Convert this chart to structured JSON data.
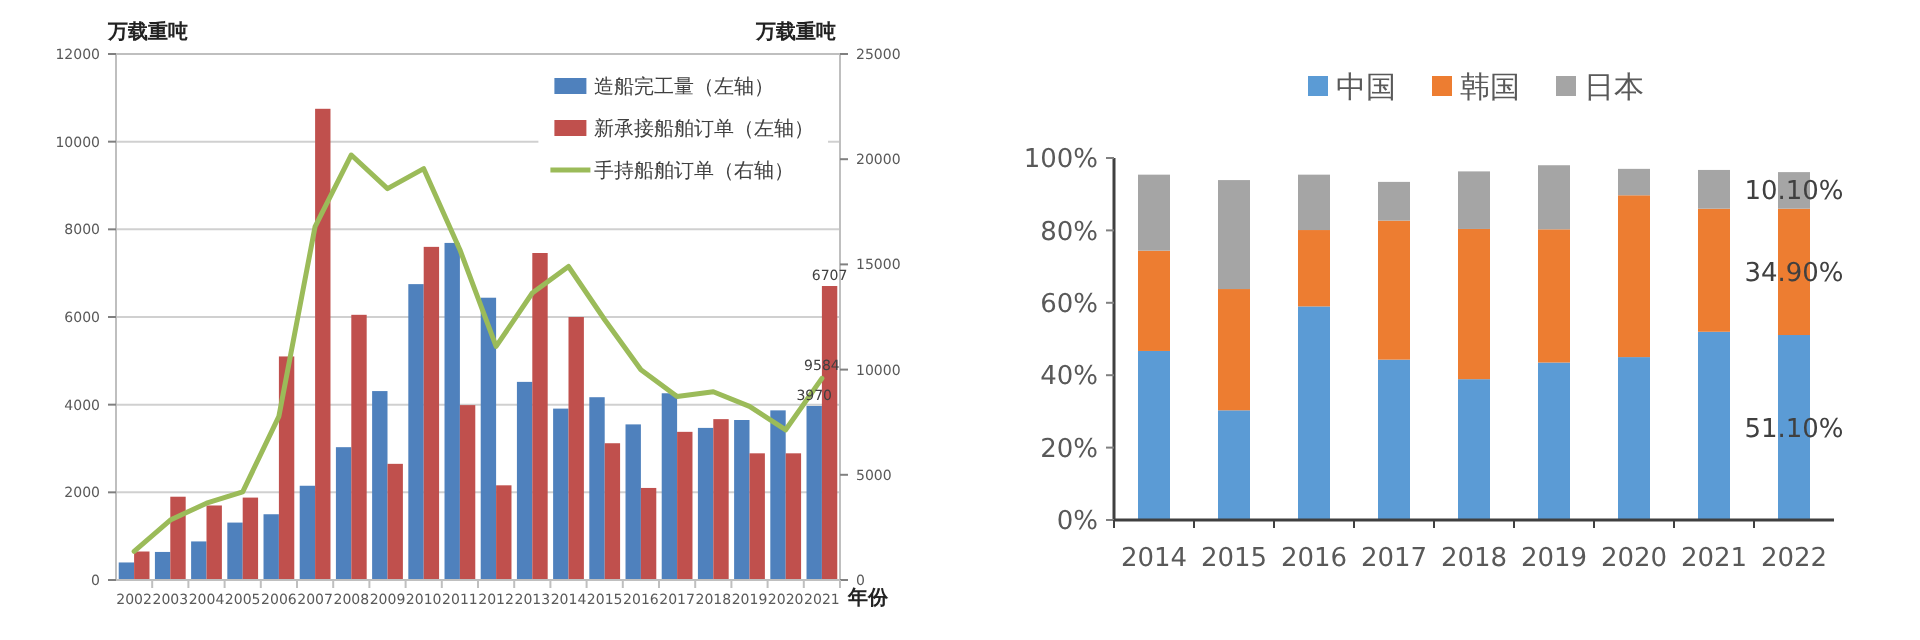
{
  "chart_data": [
    {
      "type": "bar",
      "categories": [
        "2002",
        "2003",
        "2004",
        "2005",
        "2006",
        "2007",
        "2008",
        "2009",
        "2010",
        "2011",
        "2012",
        "2013",
        "2014",
        "2015",
        "2016",
        "2017",
        "2018",
        "2019",
        "2020",
        "2021"
      ],
      "series": [
        {
          "name": "造船完工量（左轴）",
          "color": "#4f81bd",
          "values": [
            400,
            640,
            880,
            1310,
            1500,
            2150,
            3030,
            4310,
            6750,
            7690,
            6440,
            4520,
            3910,
            4170,
            3550,
            4260,
            3470,
            3650,
            3870,
            3970
          ],
          "value_labels": [
            null,
            null,
            null,
            null,
            null,
            null,
            null,
            null,
            null,
            null,
            null,
            null,
            null,
            null,
            null,
            null,
            null,
            null,
            null,
            "3970"
          ]
        },
        {
          "name": "新承接船舶订单（左轴）",
          "color": "#c0504d",
          "values": [
            650,
            1900,
            1700,
            1880,
            5100,
            10750,
            6050,
            2650,
            7600,
            3990,
            2160,
            7460,
            6000,
            3120,
            2100,
            3380,
            3670,
            2890,
            2890,
            6707
          ],
          "value_labels": [
            null,
            null,
            null,
            null,
            null,
            null,
            null,
            null,
            null,
            null,
            null,
            null,
            null,
            null,
            null,
            null,
            null,
            null,
            null,
            "6707"
          ]
        },
        {
          "name": "手持船舶订单（右轴）",
          "type": "line",
          "axis": "y2",
          "color": "#9bbb59",
          "values": [
            1360,
            2850,
            3650,
            4190,
            7780,
            16800,
            20200,
            18600,
            19550,
            15700,
            11100,
            13640,
            14900,
            12370,
            9990,
            8720,
            8950,
            8250,
            7140,
            9584
          ],
          "value_labels": [
            null,
            null,
            null,
            null,
            null,
            null,
            null,
            null,
            null,
            null,
            null,
            null,
            null,
            null,
            null,
            null,
            null,
            null,
            null,
            "9584"
          ]
        }
      ],
      "ylabel": "万载重吨",
      "y2label": "万载重吨",
      "xlabel": "年份",
      "ylim": [
        0,
        12000
      ],
      "yticks": [
        0,
        2000,
        4000,
        6000,
        8000,
        10000,
        12000
      ],
      "y2lim": [
        0,
        25000
      ],
      "y2ticks": [
        0,
        5000,
        10000,
        15000,
        20000,
        25000
      ],
      "grid": "y",
      "legend": "top right",
      "marker": "none"
    },
    {
      "type": "bar",
      "stacked": true,
      "categories": [
        "2014",
        "2015",
        "2016",
        "2017",
        "2018",
        "2019",
        "2020",
        "2021",
        "2022"
      ],
      "series": [
        {
          "name": "中国",
          "color": "#5b9bd5",
          "values": [
            46.7,
            30.3,
            59.0,
            44.3,
            38.9,
            43.5,
            45.0,
            52.0,
            51.1
          ],
          "value_labels": [
            null,
            null,
            null,
            null,
            null,
            null,
            null,
            null,
            "51.10%"
          ]
        },
        {
          "name": "韩国",
          "color": "#ed7d31",
          "values": [
            27.7,
            33.5,
            21.1,
            38.4,
            41.5,
            36.8,
            44.7,
            34.0,
            34.9
          ],
          "value_labels": [
            null,
            null,
            null,
            null,
            null,
            null,
            null,
            null,
            "34.90%"
          ]
        },
        {
          "name": "日本",
          "color": "#a5a5a5",
          "values": [
            21.0,
            30.1,
            15.3,
            10.7,
            15.9,
            17.7,
            7.3,
            10.7,
            10.1
          ],
          "value_labels": [
            null,
            null,
            null,
            null,
            null,
            null,
            null,
            null,
            "10.10%"
          ]
        }
      ],
      "ylim": [
        0,
        100
      ],
      "yticks": [
        {
          "value": 0,
          "label": "0%"
        },
        {
          "value": 20,
          "label": "20%"
        },
        {
          "value": 40,
          "label": "40%"
        },
        {
          "value": 60,
          "label": "60%"
        },
        {
          "value": 80,
          "label": "80%"
        },
        {
          "value": 100,
          "label": "100%"
        }
      ],
      "legend": "top"
    }
  ]
}
